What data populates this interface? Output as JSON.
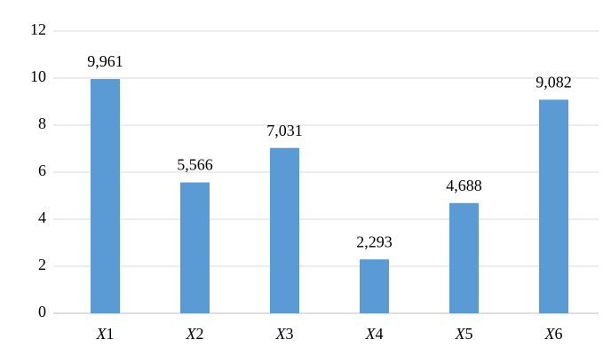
{
  "chart_data": {
    "type": "bar",
    "categories": [
      "X1",
      "X2",
      "X3",
      "X4",
      "X5",
      "X6"
    ],
    "values": [
      9.961,
      5.566,
      7.031,
      2.293,
      4.688,
      9.082
    ],
    "value_labels": [
      "9,961",
      "5,566",
      "7,031",
      "2,293",
      "4,688",
      "9,082"
    ],
    "color": "#5b9bd5",
    "ylim": [
      0,
      12
    ],
    "yticks": [
      0,
      2,
      4,
      6,
      8,
      10,
      12
    ],
    "grid": true
  }
}
